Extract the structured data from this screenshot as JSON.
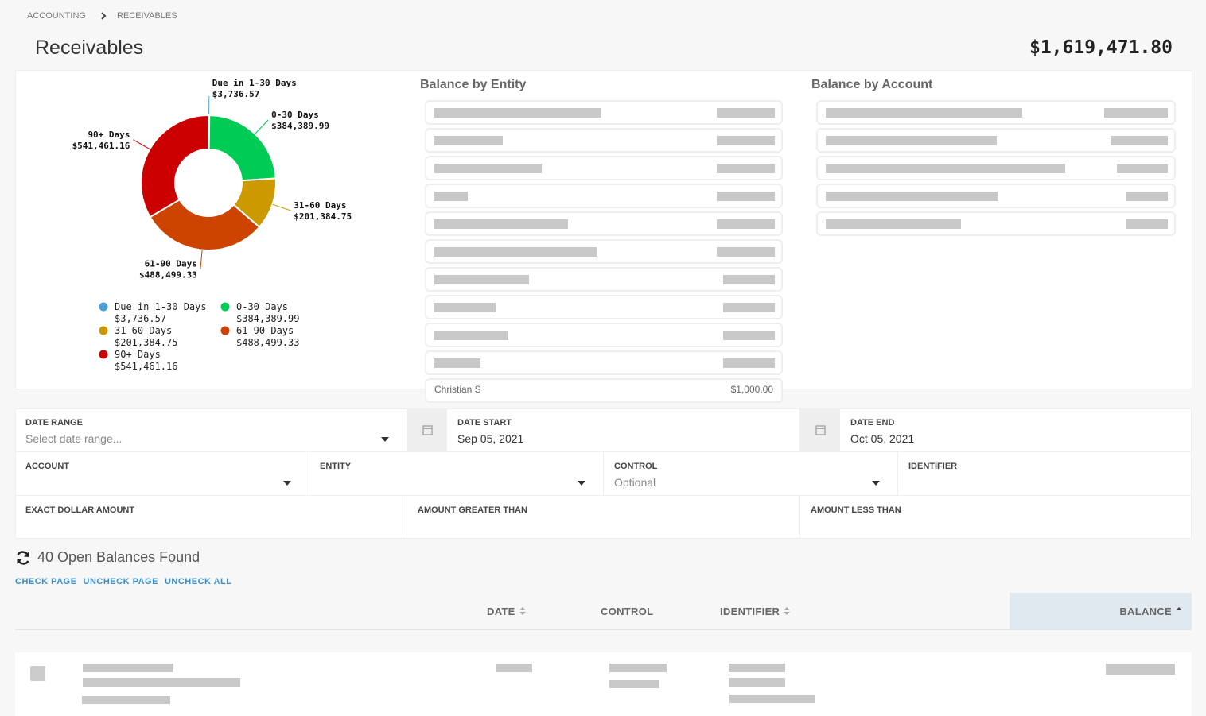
{
  "breadcrumb": [
    "ACCOUNTING",
    "RECEIVABLES"
  ],
  "header": {
    "title": "Receivables",
    "total": "$1,619,471.80"
  },
  "chart_data": {
    "type": "pie",
    "donut": true,
    "categories": [
      "Due in 1-30 Days",
      "0-30 Days",
      "31-60 Days",
      "61-90 Days",
      "90+ Days"
    ],
    "values": [
      3736.57,
      384389.99,
      201384.75,
      488499.33,
      541461.16
    ],
    "value_labels": [
      "$3,736.57",
      "$384,389.99",
      "$201,384.75",
      "$488,499.33",
      "$541,461.16"
    ],
    "colors": [
      "#4a9fd8",
      "#00cc55",
      "#cc9900",
      "#cc4400",
      "#cc0000"
    ]
  },
  "entity_panel": {
    "title": "Balance by Entity",
    "partial_row": {
      "name": "Christian S",
      "balance": "$1,000.00"
    }
  },
  "account_panel": {
    "title": "Balance by Account"
  },
  "filters": [
    {
      "label": "DATE RANGE",
      "value": "Select date range..."
    },
    {
      "label": "DATE START",
      "value": "Sep 05, 2021"
    },
    {
      "label": "DATE END",
      "value": "Oct 05, 2021"
    },
    {
      "label": "ACCOUNT"
    },
    {
      "label": "ENTITY"
    },
    {
      "label": "CONTROL",
      "value": "Optional"
    },
    {
      "label": "IDENTIFIER"
    },
    {
      "label": "EXACT DOLLAR AMOUNT"
    },
    {
      "label": "AMOUNT GREATER THAN"
    },
    {
      "label": "AMOUNT LESS THAN"
    }
  ],
  "results": {
    "count_text": "40 Open Balances Found",
    "actions": [
      "CHECK PAGE",
      "UNCHECK PAGE",
      "UNCHECK ALL"
    ]
  },
  "table": {
    "columns": [
      "DATE",
      "CONTROL",
      "IDENTIFIER",
      "BALANCE"
    ]
  }
}
